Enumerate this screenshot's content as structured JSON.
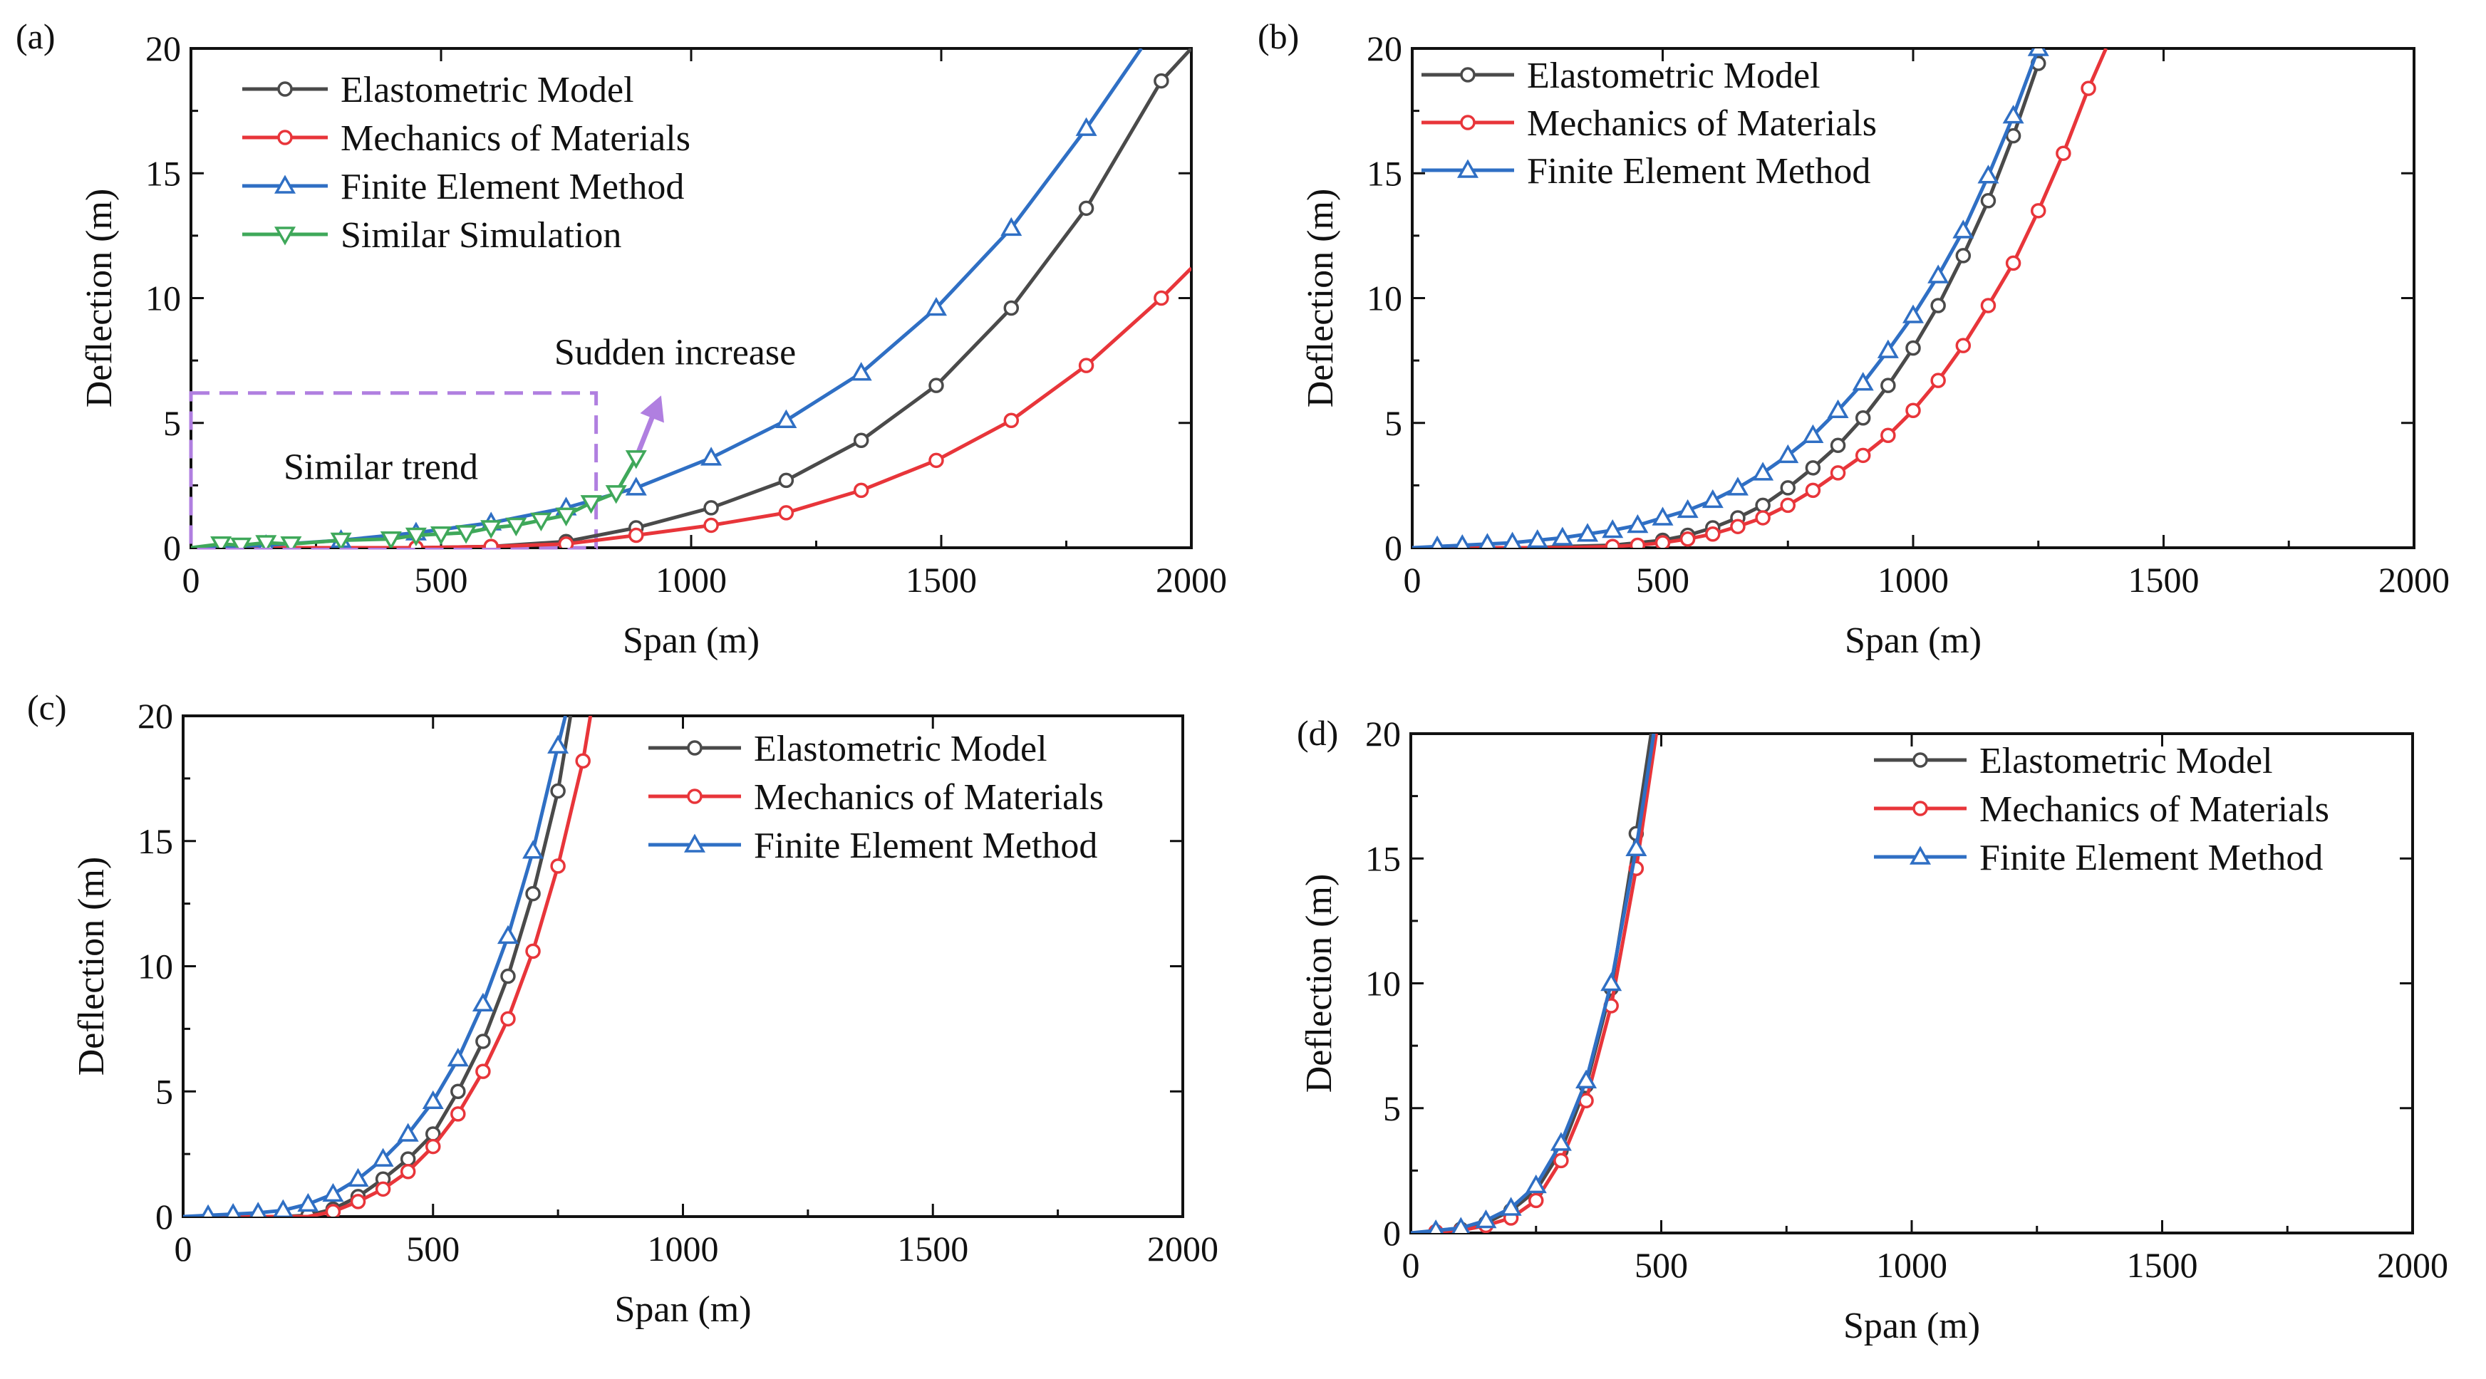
{
  "figure": {
    "colors": {
      "Elastometric Model": "#4a4a4a",
      "Mechanics of Materials": "#e8353a",
      "Finite Element Method": "#2f6fc4",
      "Similar Simulation": "#3fa85a",
      "annotation": "#b07fe0"
    }
  },
  "chart_data": [
    {
      "panel": "(a)",
      "type": "line",
      "xlabel": "Span (m)",
      "ylabel": "Deflection (m)",
      "xlim": [
        0,
        2000
      ],
      "ylim": [
        0,
        20
      ],
      "xticks": [
        0,
        500,
        1000,
        1500,
        2000
      ],
      "yticks": [
        0,
        5,
        10,
        15,
        20
      ],
      "legend": [
        "Elastometric Model",
        "Mechanics of Materials",
        "Finite Element Method",
        "Similar Simulation"
      ],
      "annotations": {
        "box_label": "Similar trend",
        "arrow_label": "Sudden increase",
        "box_x": [
          0,
          810
        ],
        "box_y": [
          0,
          6.2
        ],
        "arrow_from": [
          890,
          3.6
        ],
        "arrow_to": [
          940,
          6.1
        ]
      },
      "series": [
        {
          "name": "Elastometric Model",
          "marker": "circle",
          "x": [
            0,
            150,
            300,
            450,
            600,
            750,
            890,
            1040,
            1190,
            1340,
            1490,
            1640,
            1790,
            1940,
            2000
          ],
          "y": [
            0,
            0,
            0,
            0,
            0.05,
            0.25,
            0.8,
            1.6,
            2.7,
            4.3,
            6.5,
            9.6,
            13.6,
            18.7,
            20
          ],
          "marker_x": [
            150,
            300,
            450,
            600,
            750,
            890,
            1040,
            1190,
            1340,
            1490,
            1640,
            1790,
            1940
          ]
        },
        {
          "name": "Mechanics of Materials",
          "marker": "circle",
          "x": [
            0,
            150,
            300,
            450,
            600,
            750,
            890,
            1040,
            1190,
            1340,
            1490,
            1640,
            1790,
            1940,
            2000
          ],
          "y": [
            0,
            0,
            0,
            0,
            0.05,
            0.15,
            0.5,
            0.9,
            1.4,
            2.3,
            3.5,
            5.1,
            7.3,
            10.0,
            11.2
          ],
          "marker_x": [
            150,
            300,
            450,
            600,
            750,
            890,
            1040,
            1190,
            1340,
            1490,
            1640,
            1790,
            1940
          ]
        },
        {
          "name": "Finite Element Method",
          "marker": "triangle-up",
          "x": [
            0,
            150,
            300,
            450,
            600,
            750,
            890,
            1040,
            1190,
            1340,
            1490,
            1640,
            1790,
            1900
          ],
          "y": [
            0,
            0.1,
            0.3,
            0.6,
            1.0,
            1.6,
            2.4,
            3.6,
            5.1,
            7.0,
            9.6,
            12.8,
            16.8,
            20
          ],
          "marker_x": [
            150,
            300,
            450,
            600,
            750,
            890,
            1040,
            1190,
            1340,
            1490,
            1640,
            1790
          ]
        },
        {
          "name": "Similar Simulation",
          "marker": "triangle-down",
          "x": [
            0,
            60,
            100,
            150,
            200,
            300,
            400,
            450,
            500,
            550,
            600,
            650,
            700,
            750,
            800,
            850,
            890
          ],
          "y": [
            0,
            0.15,
            0.1,
            0.2,
            0.15,
            0.3,
            0.35,
            0.5,
            0.55,
            0.6,
            0.8,
            0.9,
            1.1,
            1.3,
            1.8,
            2.2,
            3.6
          ],
          "marker_x": [
            60,
            100,
            150,
            200,
            300,
            400,
            450,
            500,
            550,
            600,
            650,
            700,
            750,
            800,
            850,
            890
          ]
        }
      ]
    },
    {
      "panel": "(b)",
      "type": "line",
      "xlabel": "Span (m)",
      "ylabel": "Deflection (m)",
      "xlim": [
        0,
        2000
      ],
      "ylim": [
        0,
        20
      ],
      "xticks": [
        0,
        500,
        1000,
        1500,
        2000
      ],
      "yticks": [
        0,
        5,
        10,
        15,
        20
      ],
      "legend": [
        "Elastometric Model",
        "Mechanics of Materials",
        "Finite Element Method"
      ],
      "series": [
        {
          "name": "Elastometric Model",
          "marker": "circle",
          "x": [
            0,
            250,
            300,
            400,
            500,
            550,
            600,
            650,
            700,
            750,
            800,
            850,
            900,
            950,
            1000,
            1050,
            1100,
            1150,
            1200,
            1250,
            1260
          ],
          "y": [
            0,
            0,
            0.05,
            0.1,
            0.3,
            0.5,
            0.8,
            1.2,
            1.7,
            2.4,
            3.2,
            4.1,
            5.2,
            6.5,
            8.0,
            9.7,
            11.7,
            13.9,
            16.5,
            19.4,
            20
          ],
          "marker_x": [
            500,
            550,
            600,
            650,
            700,
            750,
            800,
            850,
            900,
            950,
            1000,
            1050,
            1100,
            1150,
            1200,
            1250
          ]
        },
        {
          "name": "Mechanics of Materials",
          "marker": "circle",
          "x": [
            0,
            300,
            400,
            450,
            500,
            550,
            600,
            650,
            700,
            750,
            800,
            850,
            900,
            950,
            1000,
            1050,
            1100,
            1150,
            1200,
            1250,
            1300,
            1350,
            1385
          ],
          "y": [
            0,
            0,
            0.05,
            0.1,
            0.2,
            0.35,
            0.55,
            0.85,
            1.2,
            1.7,
            2.3,
            3.0,
            3.7,
            4.5,
            5.5,
            6.7,
            8.1,
            9.7,
            11.4,
            13.5,
            15.8,
            18.4,
            20
          ],
          "marker_x": [
            400,
            450,
            500,
            550,
            600,
            650,
            700,
            750,
            800,
            850,
            900,
            950,
            1000,
            1050,
            1100,
            1150,
            1200,
            1250,
            1300,
            1350
          ]
        },
        {
          "name": "Finite Element Method",
          "marker": "triangle-up",
          "x": [
            0,
            50,
            100,
            150,
            200,
            250,
            300,
            350,
            400,
            450,
            500,
            550,
            600,
            650,
            700,
            750,
            800,
            850,
            900,
            950,
            1000,
            1050,
            1100,
            1150,
            1200,
            1250
          ],
          "y": [
            0,
            0.05,
            0.1,
            0.15,
            0.2,
            0.3,
            0.4,
            0.55,
            0.7,
            0.9,
            1.2,
            1.5,
            1.9,
            2.4,
            3.0,
            3.7,
            4.5,
            5.5,
            6.6,
            7.9,
            9.3,
            10.9,
            12.7,
            14.9,
            17.3,
            20
          ],
          "marker_x": [
            50,
            100,
            150,
            200,
            250,
            300,
            350,
            400,
            450,
            500,
            550,
            600,
            650,
            700,
            750,
            800,
            850,
            900,
            950,
            1000,
            1050,
            1100,
            1150,
            1200,
            1250
          ]
        }
      ]
    },
    {
      "panel": "(c)",
      "type": "line",
      "xlabel": "Span (m)",
      "ylabel": "Deflection (m)",
      "xlim": [
        0,
        2000
      ],
      "ylim": [
        0,
        20
      ],
      "xticks": [
        0,
        500,
        1000,
        1500,
        2000
      ],
      "yticks": [
        0,
        5,
        10,
        15,
        20
      ],
      "legend": [
        "Elastometric Model",
        "Mechanics of Materials",
        "Finite Element Method"
      ],
      "series": [
        {
          "name": "Elastometric Model",
          "marker": "circle",
          "x": [
            0,
            200,
            250,
            300,
            350,
            400,
            450,
            500,
            550,
            600,
            650,
            700,
            750,
            775
          ],
          "y": [
            0,
            0,
            0.05,
            0.3,
            0.8,
            1.5,
            2.3,
            3.3,
            5.0,
            7.0,
            9.6,
            12.9,
            17.0,
            20
          ],
          "marker_x": [
            250,
            300,
            350,
            400,
            450,
            500,
            550,
            600,
            650,
            700,
            750
          ]
        },
        {
          "name": "Mechanics of Materials",
          "marker": "circle",
          "x": [
            0,
            250,
            300,
            350,
            400,
            450,
            500,
            550,
            600,
            650,
            700,
            750,
            800,
            815
          ],
          "y": [
            0,
            0,
            0.2,
            0.6,
            1.1,
            1.8,
            2.8,
            4.1,
            5.8,
            7.9,
            10.6,
            14.0,
            18.2,
            20
          ],
          "marker_x": [
            300,
            350,
            400,
            450,
            500,
            550,
            600,
            650,
            700,
            750,
            800
          ]
        },
        {
          "name": "Finite Element Method",
          "marker": "triangle-up",
          "x": [
            0,
            50,
            100,
            150,
            200,
            250,
            300,
            350,
            400,
            450,
            500,
            550,
            600,
            650,
            700,
            750,
            765
          ],
          "y": [
            0,
            0.05,
            0.1,
            0.15,
            0.25,
            0.5,
            0.9,
            1.5,
            2.3,
            3.3,
            4.6,
            6.3,
            8.5,
            11.2,
            14.6,
            18.8,
            20
          ],
          "marker_x": [
            50,
            100,
            150,
            200,
            250,
            300,
            350,
            400,
            450,
            500,
            550,
            600,
            650,
            700,
            750
          ]
        }
      ]
    },
    {
      "panel": "(d)",
      "type": "line",
      "xlabel": "Span (m)",
      "ylabel": "Deflection (m)",
      "xlim": [
        0,
        2000
      ],
      "ylim": [
        0,
        20
      ],
      "xticks": [
        0,
        500,
        1000,
        1500,
        2000
      ],
      "yticks": [
        0,
        5,
        10,
        15,
        20
      ],
      "legend": [
        "Elastometric Model",
        "Mechanics of Materials",
        "Finite Element Method"
      ],
      "series": [
        {
          "name": "Elastometric Model",
          "marker": "circle",
          "x": [
            0,
            50,
            100,
            150,
            200,
            250,
            300,
            350,
            400,
            450,
            480
          ],
          "y": [
            0,
            0.05,
            0.15,
            0.4,
            0.9,
            1.7,
            3.3,
            5.9,
            9.8,
            16.0,
            20
          ],
          "marker_x": [
            50,
            100,
            150,
            200,
            250,
            300,
            350,
            400,
            450
          ]
        },
        {
          "name": "Mechanics of Materials",
          "marker": "circle",
          "x": [
            0,
            50,
            100,
            150,
            200,
            250,
            300,
            350,
            400,
            450,
            490
          ],
          "y": [
            0,
            0.05,
            0.1,
            0.3,
            0.6,
            1.3,
            2.9,
            5.3,
            9.1,
            14.6,
            20
          ],
          "marker_x": [
            50,
            100,
            150,
            200,
            250,
            300,
            350,
            400,
            450
          ]
        },
        {
          "name": "Finite Element Method",
          "marker": "triangle-up",
          "x": [
            0,
            50,
            100,
            150,
            200,
            250,
            300,
            350,
            400,
            450,
            485
          ],
          "y": [
            0,
            0.1,
            0.2,
            0.5,
            1.0,
            1.9,
            3.6,
            6.1,
            10.0,
            15.4,
            20
          ],
          "marker_x": [
            50,
            100,
            150,
            200,
            250,
            300,
            350,
            400,
            450
          ]
        }
      ]
    }
  ]
}
